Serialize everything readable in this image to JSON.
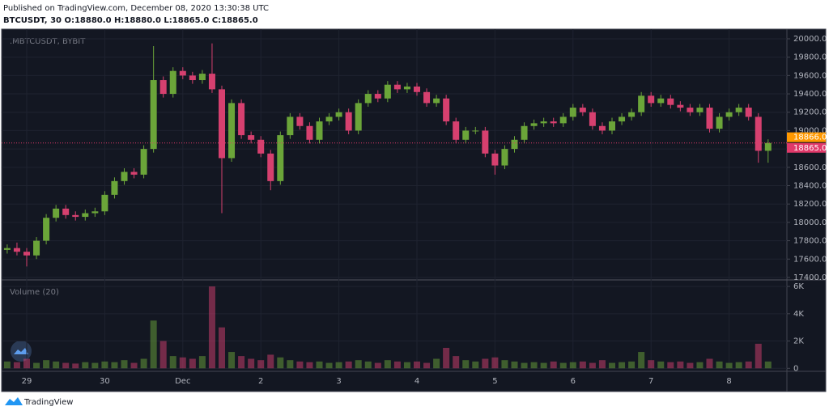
{
  "chart_data": {
    "type": "candlestick",
    "title": "Published on TradingView.com, December 08, 2020 13:30:38 UTC",
    "subtitle": "BTCUSDT, 30  O:18880.0 H:18880.0 L:18865.0 C:18865.0",
    "watermark": ".MBTCUSDT, BYBIT",
    "brand": "TradingView",
    "up_color": "#6ba539",
    "down_color": "#d6406f",
    "grid": true,
    "categories": [
      null,
      null,
      "29",
      null,
      null,
      null,
      null,
      null,
      null,
      null,
      "30",
      null,
      null,
      null,
      null,
      null,
      null,
      null,
      "Dec",
      null,
      null,
      null,
      null,
      null,
      null,
      null,
      "2",
      null,
      null,
      null,
      null,
      null,
      null,
      null,
      "3",
      null,
      null,
      null,
      null,
      null,
      null,
      null,
      "4",
      null,
      null,
      null,
      null,
      null,
      null,
      null,
      "5",
      null,
      null,
      null,
      null,
      null,
      null,
      null,
      "6",
      null,
      null,
      null,
      null,
      null,
      null,
      null,
      "7",
      null,
      null,
      null,
      null,
      null,
      null,
      null,
      "8",
      null,
      null,
      null,
      null
    ],
    "open": [
      17700,
      17720,
      17680,
      17640,
      17800,
      18050,
      18150,
      18080,
      18060,
      18100,
      18120,
      18300,
      18450,
      18550,
      18520,
      18800,
      19550,
      19400,
      19650,
      19600,
      19550,
      19620,
      19450,
      18700,
      19300,
      18950,
      18900,
      18750,
      18450,
      18950,
      19150,
      19050,
      18900,
      19100,
      19150,
      19200,
      19000,
      19300,
      19400,
      19350,
      19500,
      19450,
      19480,
      19420,
      19300,
      19350,
      19100,
      18900,
      19000,
      19000,
      18750,
      18620,
      18800,
      18900,
      19050,
      19080,
      19100,
      19080,
      19150,
      19250,
      19200,
      19050,
      19000,
      19100,
      19150,
      19200,
      19380,
      19300,
      19350,
      19280,
      19250,
      19200,
      19250,
      19020,
      19150,
      19200,
      19250,
      19150,
      18780
    ],
    "high": [
      17760,
      17780,
      17720,
      17840,
      18090,
      18190,
      18190,
      18120,
      18140,
      18160,
      18340,
      18490,
      18590,
      18590,
      18840,
      19920,
      19590,
      19690,
      19690,
      19640,
      19660,
      19950,
      19490,
      19340,
      19340,
      18990,
      18940,
      18790,
      18990,
      19190,
      19190,
      19090,
      19140,
      19190,
      19240,
      19240,
      19340,
      19440,
      19440,
      19540,
      19540,
      19520,
      19520,
      19460,
      19390,
      19390,
      19140,
      19040,
      19040,
      19040,
      18790,
      18840,
      18940,
      19090,
      19120,
      19140,
      19140,
      19190,
      19290,
      19290,
      19240,
      19090,
      19140,
      19190,
      19240,
      19420,
      19420,
      19390,
      19390,
      19320,
      19290,
      19290,
      19290,
      19190,
      19240,
      19290,
      19290,
      19190,
      18905
    ],
    "low": [
      17660,
      17640,
      17520,
      17600,
      17760,
      18010,
      18040,
      18020,
      18020,
      18060,
      18080,
      18260,
      18410,
      18480,
      18480,
      18760,
      19360,
      19360,
      19560,
      19510,
      19510,
      19410,
      18100,
      18660,
      18910,
      18860,
      18710,
      18350,
      18410,
      18910,
      19010,
      18860,
      18860,
      19060,
      19110,
      18960,
      18960,
      19260,
      19310,
      19310,
      19410,
      19410,
      19380,
      19260,
      19260,
      19060,
      18860,
      18860,
      18960,
      18710,
      18520,
      18580,
      18760,
      18860,
      19010,
      19040,
      19040,
      19040,
      19110,
      19160,
      19010,
      18960,
      18960,
      19060,
      19110,
      19160,
      19260,
      19260,
      19240,
      19210,
      19160,
      19160,
      18980,
      18980,
      19110,
      19160,
      19110,
      18650,
      18650
    ],
    "close": [
      17720,
      17680,
      17640,
      17800,
      18050,
      18150,
      18080,
      18060,
      18100,
      18120,
      18300,
      18450,
      18550,
      18520,
      18800,
      19550,
      19400,
      19650,
      19600,
      19550,
      19620,
      19450,
      18700,
      19300,
      18950,
      18900,
      18750,
      18450,
      18950,
      19150,
      19050,
      18900,
      19100,
      19150,
      19200,
      19000,
      19300,
      19400,
      19350,
      19500,
      19450,
      19480,
      19420,
      19300,
      19350,
      19100,
      18900,
      19000,
      19000,
      18750,
      18620,
      18800,
      18900,
      19050,
      19080,
      19100,
      19080,
      19150,
      19250,
      19200,
      19050,
      19000,
      19100,
      19150,
      19200,
      19380,
      19300,
      19350,
      19280,
      19250,
      19200,
      19250,
      19020,
      19150,
      19200,
      19250,
      19150,
      18780,
      18865
    ],
    "ylim": [
      17382,
      20088
    ],
    "yticks": [
      {
        "value": 17400,
        "label": "17400.0"
      },
      {
        "value": 17600,
        "label": "17600.0"
      },
      {
        "value": 17800,
        "label": "17800.0"
      },
      {
        "value": 18000,
        "label": "18000.0"
      },
      {
        "value": 18200,
        "label": "18200.0"
      },
      {
        "value": 18400,
        "label": "18400.0"
      },
      {
        "value": 18600,
        "label": "18600.0"
      },
      {
        "value": 18800,
        "label": "18800.0"
      },
      {
        "value": 19000,
        "label": "19000.0"
      },
      {
        "value": 19200,
        "label": "19200.0"
      },
      {
        "value": 19400,
        "label": "19400.0"
      },
      {
        "value": 19600,
        "label": "19600.0"
      },
      {
        "value": 19800,
        "label": "19800.0"
      },
      {
        "value": 20000,
        "label": "20000.0"
      }
    ],
    "price_labels": [
      {
        "value": 18866,
        "label": "18866.0",
        "color": "#ff9800"
      },
      {
        "value": 18865,
        "label": "18865.0",
        "color": "#e0396a"
      }
    ],
    "volume_title": "Volume (20)",
    "volume": [
      500,
      450,
      700,
      400,
      600,
      500,
      400,
      350,
      450,
      400,
      500,
      450,
      600,
      400,
      700,
      3500,
      2000,
      900,
      800,
      700,
      900,
      6000,
      3000,
      1200,
      900,
      700,
      600,
      1000,
      800,
      600,
      500,
      450,
      500,
      400,
      450,
      500,
      600,
      500,
      400,
      600,
      500,
      450,
      500,
      400,
      700,
      1500,
      900,
      600,
      500,
      700,
      800,
      600,
      500,
      400,
      450,
      400,
      500,
      400,
      450,
      500,
      400,
      600,
      400,
      450,
      500,
      1200,
      600,
      500,
      450,
      500,
      400,
      450,
      700,
      500,
      400,
      450,
      500,
      1800,
      500
    ],
    "volume_ylim": [
      -160,
      6360
    ],
    "volume_yticks": [
      0,
      {
        "value": 2000,
        "label": "2K"
      },
      {
        "value": 4000,
        "label": "4K"
      },
      {
        "value": 6000,
        "label": "6K"
      }
    ]
  }
}
